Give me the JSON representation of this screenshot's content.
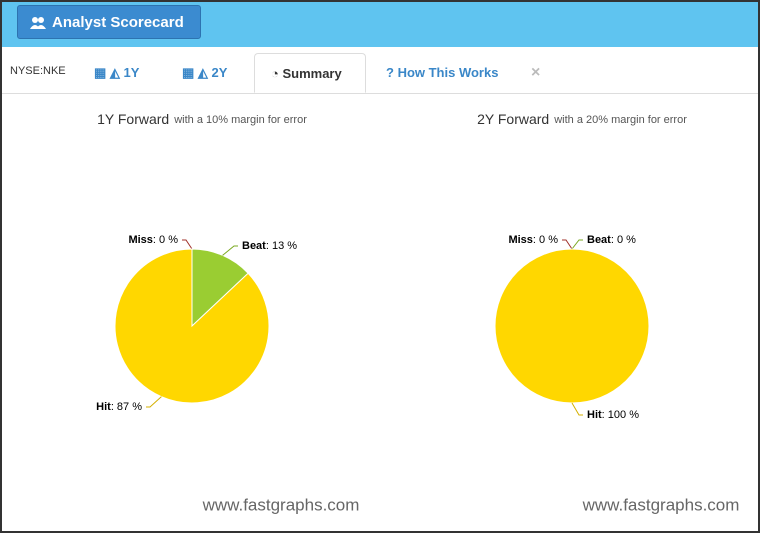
{
  "header": {
    "button": "Analyst Scorecard"
  },
  "tabs": {
    "ticker": "NYSE:NKE",
    "items": [
      "1Y",
      "2Y",
      "Summary",
      "How This Works"
    ],
    "close": "×"
  },
  "chart_data": [
    {
      "type": "pie",
      "title": "1Y Forward",
      "subtitle": "with a 10% margin for error",
      "categories": [
        "Miss",
        "Beat",
        "Hit"
      ],
      "values": [
        0,
        13,
        87
      ],
      "value_labels": [
        ": 0 %",
        ": 13 %",
        ": 87 %"
      ],
      "colors": [
        "#c0504d",
        "#9acd32",
        "#ffd700"
      ],
      "watermark": "www.fastgraphs.com"
    },
    {
      "type": "pie",
      "title": "2Y Forward",
      "subtitle": "with a 20% margin for error",
      "categories": [
        "Miss",
        "Beat",
        "Hit"
      ],
      "values": [
        0,
        0,
        100
      ],
      "value_labels": [
        ": 0 %",
        ": 0 %",
        ": 100 %"
      ],
      "colors": [
        "#c0504d",
        "#9acd32",
        "#ffd700"
      ],
      "watermark": "www.fastgraphs.com"
    }
  ]
}
